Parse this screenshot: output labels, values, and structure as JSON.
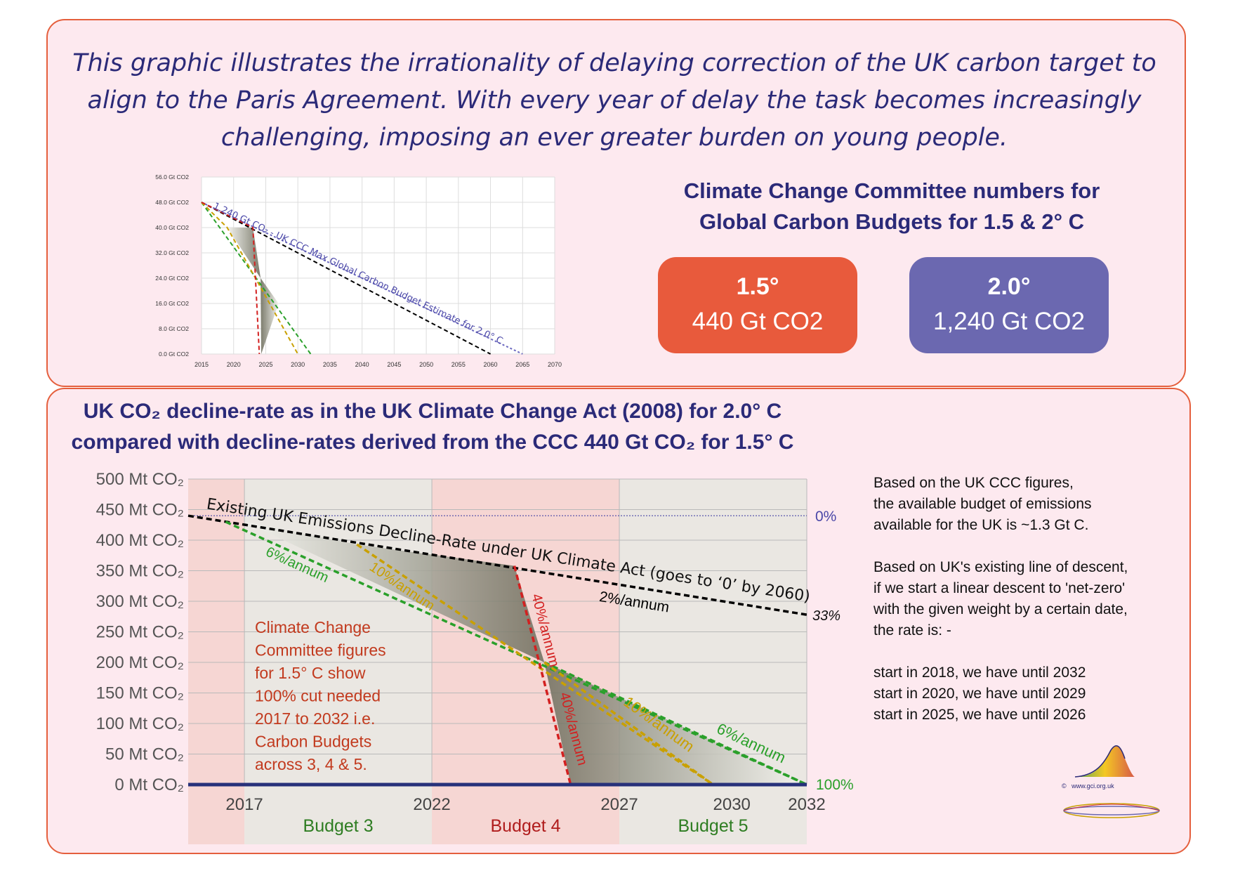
{
  "intro_text": "This graphic illustrates the irrationality of delaying correction of the UK carbon target to align to the Paris Agreement. With every year of delay the task becomes increasingly challenging, imposing an ever greater burden on young people.",
  "ccc": {
    "title_line1": "Climate Change Committee numbers for",
    "title_line2": "Global Carbon Budgets for 1.5 & 2° C",
    "cards": [
      {
        "degree": "1.5°",
        "amount": "440 Gt CO2",
        "color": "#e85a3c"
      },
      {
        "degree": "2.0°",
        "amount": "1,240 Gt CO2",
        "color": "#6b68b0"
      }
    ]
  },
  "uk_section": {
    "title_line1": "UK CO₂ decline-rate as in the UK Climate Change Act (2008) for 2.0° C",
    "title_line2": "compared with decline-rates derived from the CCC 440 Gt CO₂ for 1.5° C"
  },
  "side_notes": {
    "para1": [
      "Based on the UK CCC figures,",
      "the  available budget of emissions",
      "available for the UK is ~1.3 Gt C."
    ],
    "para2": [
      "Based on UK's existing line of descent,",
      "if we start a linear descent to 'net-zero'",
      "with the given weight by a certain date,",
      "the rate is: -"
    ],
    "para3": [
      "start in 2018, we have until 2032",
      "start in 2020, we have until 2029",
      "start in 2025, we have until 2026"
    ]
  },
  "logo": {
    "copyright": "©",
    "site": "www.gci.org.uk"
  },
  "chart_data": [
    {
      "type": "line",
      "title": "",
      "xlim": [
        2015,
        2070
      ],
      "ylim": [
        0,
        56
      ],
      "x_ticks": [
        "2015",
        "2020",
        "2025",
        "2030",
        "2035",
        "2040",
        "2045",
        "2050",
        "2055",
        "2060",
        "2065",
        "2070"
      ],
      "y_ticks": [
        "0.0 Gt CO2",
        "8.0 Gt CO2",
        "16.0 Gt CO2",
        "24.0 Gt CO2",
        "32.0 Gt CO2",
        "40.0 Gt CO2",
        "48.0 Gt CO2",
        "56.0 Gt CO2"
      ],
      "grid": true,
      "annotation": "1,240 Gt CO₂ - UK CCC Max Global Carbon Budget Estimate for 2.0° C",
      "series": [
        {
          "color": "#6b68c0",
          "dash": "dotted",
          "points": [
            [
              2015,
              48
            ],
            [
              2065,
              0
            ]
          ]
        },
        {
          "color": "#000000",
          "dash": "dashed",
          "points": [
            [
              2015,
              48
            ],
            [
              2060,
              0
            ]
          ]
        },
        {
          "color": "#2aa02a",
          "dash": "dashed",
          "points": [
            [
              2015,
              48
            ],
            [
              2032,
              0
            ]
          ]
        },
        {
          "color": "#c9a000",
          "dash": "dashed",
          "points": [
            [
              2015,
              48
            ],
            [
              2019,
              40
            ],
            [
              2030,
              0
            ]
          ]
        },
        {
          "color": "#d32020",
          "dash": "dashed",
          "points": [
            [
              2015,
              48
            ],
            [
              2023,
              40
            ],
            [
              2024,
              0
            ]
          ]
        }
      ]
    },
    {
      "type": "line",
      "title": "",
      "x_ticks": [
        "2017",
        "2022",
        "2027",
        "2030",
        "2032"
      ],
      "y_ticks": [
        "0 Mt CO₂",
        "50 Mt CO₂",
        "100 Mt CO₂",
        "150 Mt CO₂",
        "200 Mt CO₂",
        "250 Mt CO₂",
        "300 Mt CO₂",
        "350 Mt CO₂",
        "400 Mt CO₂",
        "450 Mt CO₂",
        "500 Mt CO₂"
      ],
      "xlim": [
        2015.5,
        2032
      ],
      "ylim": [
        0,
        500
      ],
      "grid": true,
      "budgets": [
        {
          "label": "Budget 3",
          "from": 2017,
          "to": 2022,
          "color": "#2e7d22"
        },
        {
          "label": "Budget 4",
          "from": 2022,
          "to": 2027,
          "color": "#b01c1c"
        },
        {
          "label": "Budget 5",
          "from": 2027,
          "to": 2032,
          "color": "#2e7d22"
        }
      ],
      "annotations": {
        "existing": "Existing UK Emissions Decline-Rate under UK Climate Act (goes to ‘0’ by 2060)",
        "ccc_note": [
          "Climate Change",
          "Committee figures",
          "for 1.5° C show",
          "100% cut needed",
          "2017 to 2032 i.e.",
          "Carbon Budgets",
          "across 3, 4 & 5."
        ],
        "pct_0": "0%",
        "pct_33": "33%",
        "pct_100": "100%"
      },
      "series": [
        {
          "name": "",
          "label": "2%/annum",
          "color": "#000000",
          "points": [
            [
              2015.5,
              440
            ],
            [
              2032,
              278
            ]
          ]
        },
        {
          "name": "",
          "label": "6%/annum",
          "color": "#2aa02a",
          "points": [
            [
              2016.5,
              430
            ],
            [
              2032,
              0
            ]
          ]
        },
        {
          "name": "",
          "label": "10%/annum",
          "color": "#c9a000",
          "points": [
            [
              2020,
              393
            ],
            [
              2029.5,
              0
            ]
          ]
        },
        {
          "name": "",
          "label": "40%/annum",
          "color": "#d32020",
          "points": [
            [
              2024.2,
              358
            ],
            [
              2025.7,
              0
            ]
          ]
        },
        {
          "name": "",
          "label": "6%/annum",
          "color": "#2aa02a",
          "points": [
            [
              2025,
              200
            ],
            [
              2032,
              0
            ]
          ]
        },
        {
          "name": "",
          "label": "10%/annum",
          "color": "#c9a000",
          "points": [
            [
              2025,
              200
            ],
            [
              2029.5,
              0
            ]
          ]
        }
      ]
    }
  ]
}
